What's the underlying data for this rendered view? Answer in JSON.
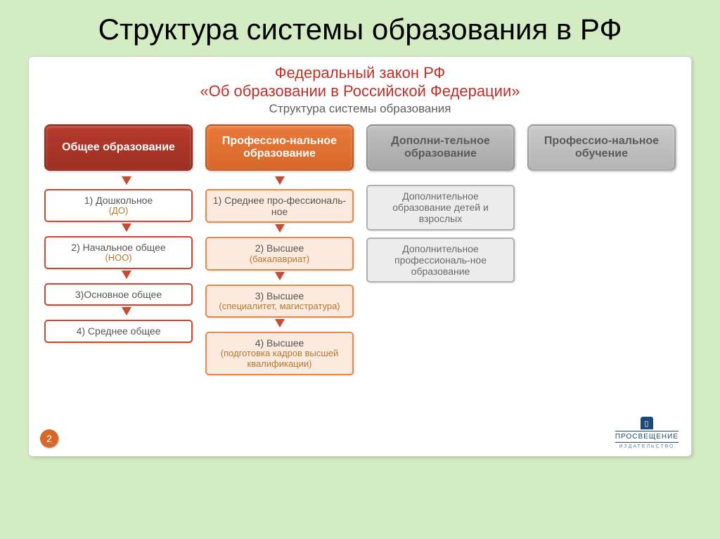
{
  "slide_title": "Структура системы образования в РФ",
  "law_title": "Федеральный закон РФ",
  "law_sub": "«Об образовании в Российской Федерации»",
  "struct_sub": "Структура системы образования",
  "page_number": "2",
  "publisher": {
    "name": "ПРОСВЕЩЕНИЕ",
    "sub": "ИЗДАТЕЛЬСТВО"
  },
  "colors": {
    "slide_bg": "#d4ecc4",
    "card_bg": "#ffffff",
    "title_red": "#c03028",
    "arrow": "#c94a30",
    "hdr_red": "#9c2f22",
    "hdr_orange": "#d86828",
    "hdr_gray": "#a8a8a8",
    "box_orange_bg": "#fdeade",
    "box_gray_bg": "#ececec"
  },
  "columns": [
    {
      "header": "Общее образование",
      "header_style": "red",
      "box_style": "red-b",
      "arrow_align": "left",
      "items": [
        {
          "text": "1) Дошкольное",
          "acr": "(ДО)"
        },
        {
          "text": "2) Начальное общее",
          "acr": "(НОО)"
        },
        {
          "text": "3)Основное общее"
        },
        {
          "text": "4) Среднее общее"
        }
      ]
    },
    {
      "header": "Профессио-нальное образование",
      "header_style": "orange",
      "box_style": "orange-b",
      "arrow_align": "center",
      "items": [
        {
          "text": "1) Среднее про-фессиональ-ное"
        },
        {
          "text": "2) Высшее",
          "acr": "(бакалавриат)"
        },
        {
          "text": "3) Высшее",
          "acr": "(специалитет, магистратура)"
        },
        {
          "text": "4) Высшее",
          "acr": "(подготовка кадров высшей квалификации)"
        }
      ]
    },
    {
      "header": "Дополни-тельное образование",
      "header_style": "gray",
      "box_style": "gray-b",
      "arrow_align": "none",
      "items": [
        {
          "text": "Дополнительное образование детей и взрослых"
        },
        {
          "text": "Дополнительное профессиональ-ное образование"
        }
      ]
    },
    {
      "header": "Профессио-нальное обучение",
      "header_style": "gray2",
      "box_style": "gray-b",
      "arrow_align": "none",
      "items": []
    }
  ]
}
